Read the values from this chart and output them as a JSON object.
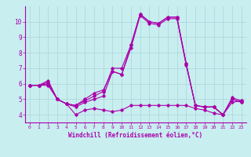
{
  "title": "",
  "xlabel": "Windchill (Refroidissement éolien,°C)",
  "background_color": "#c8eef0",
  "line_color": "#aa00aa",
  "grid_color": "#b0d8da",
  "hours": [
    0,
    1,
    2,
    3,
    4,
    5,
    6,
    7,
    8,
    9,
    10,
    11,
    12,
    13,
    14,
    15,
    16,
    17,
    18,
    19,
    20,
    21,
    22,
    23
  ],
  "line1": [
    5.9,
    5.9,
    5.9,
    5.0,
    4.7,
    4.0,
    4.3,
    4.4,
    4.3,
    4.2,
    4.3,
    4.6,
    4.6,
    4.6,
    4.6,
    4.6,
    4.6,
    4.6,
    4.4,
    4.3,
    4.1,
    4.0,
    4.8,
    4.9
  ],
  "line2": [
    5.9,
    5.9,
    6.0,
    5.0,
    4.7,
    4.5,
    4.8,
    5.0,
    5.2,
    6.8,
    6.6,
    8.5,
    10.5,
    10.0,
    9.9,
    10.3,
    10.3,
    7.3,
    4.6,
    4.5,
    4.5,
    4.0,
    5.0,
    4.8
  ],
  "line3": [
    5.9,
    5.9,
    6.1,
    5.0,
    4.7,
    4.6,
    4.9,
    5.2,
    5.5,
    7.0,
    7.0,
    8.5,
    10.5,
    10.0,
    9.9,
    10.3,
    10.3,
    7.3,
    4.6,
    4.5,
    4.5,
    4.0,
    5.0,
    4.8
  ],
  "line4": [
    5.9,
    5.9,
    6.2,
    5.0,
    4.7,
    4.6,
    5.0,
    5.4,
    5.6,
    6.8,
    6.6,
    8.3,
    10.4,
    9.9,
    9.8,
    10.2,
    10.2,
    7.2,
    4.6,
    4.5,
    4.5,
    4.0,
    5.1,
    4.9
  ],
  "ylim": [
    3.5,
    11.0
  ],
  "yticks": [
    4,
    5,
    6,
    7,
    8,
    9,
    10
  ],
  "xlim": [
    -0.5,
    23.5
  ]
}
